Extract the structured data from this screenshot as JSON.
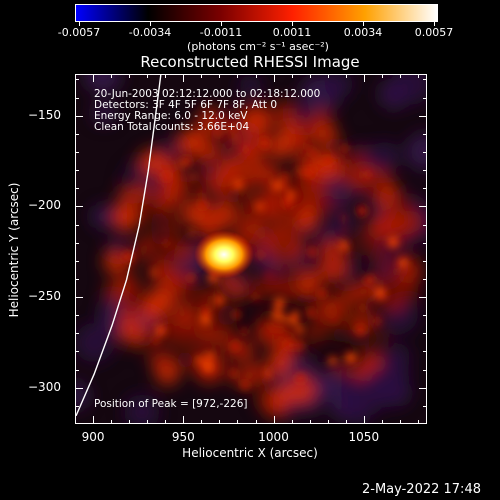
{
  "colorbar": {
    "tick_labels": [
      "-0.0057",
      "-0.0034",
      "-0.0011",
      "0.0011",
      "0.0034",
      "0.0057"
    ],
    "units": "(photons cm⁻² s⁻¹ asec⁻²)",
    "colors": [
      "#0000ff",
      "#000000",
      "#7a0000",
      "#ff2000",
      "#ffa000",
      "#ffffff"
    ]
  },
  "chart_data": {
    "type": "heatmap",
    "title": "Reconstructed RHESSI Image",
    "xlabel": "Heliocentric X (arcsec)",
    "ylabel": "Heliocentric Y (arcsec)",
    "xlim": [
      890,
      1085
    ],
    "ylim": [
      -320,
      -127
    ],
    "x_ticks": [
      "900",
      "950",
      "1000",
      "1050"
    ],
    "y_ticks": [
      "-150",
      "-200",
      "-250",
      "-300"
    ],
    "peak": [
      972,
      -226
    ],
    "limb_curve": [
      [
        890,
        -315
      ],
      [
        900,
        -292
      ],
      [
        910,
        -265
      ],
      [
        918,
        -240
      ],
      [
        925,
        -210
      ],
      [
        930,
        -180
      ],
      [
        934,
        -150
      ],
      [
        937,
        -127
      ]
    ],
    "annotations": [
      "20-Jun-2003 02:12:12.000 to 02:18:12.000",
      "Detectors: 3F 4F 5F 6F 7F 8F, Att 0",
      "Energy Range: 6.0 - 12.0 keV",
      "Clean     Total counts: 3.66E+04"
    ],
    "peak_text": "Position of Peak = [972,-226]"
  },
  "date_stamp": "2-May-2022 17:48"
}
